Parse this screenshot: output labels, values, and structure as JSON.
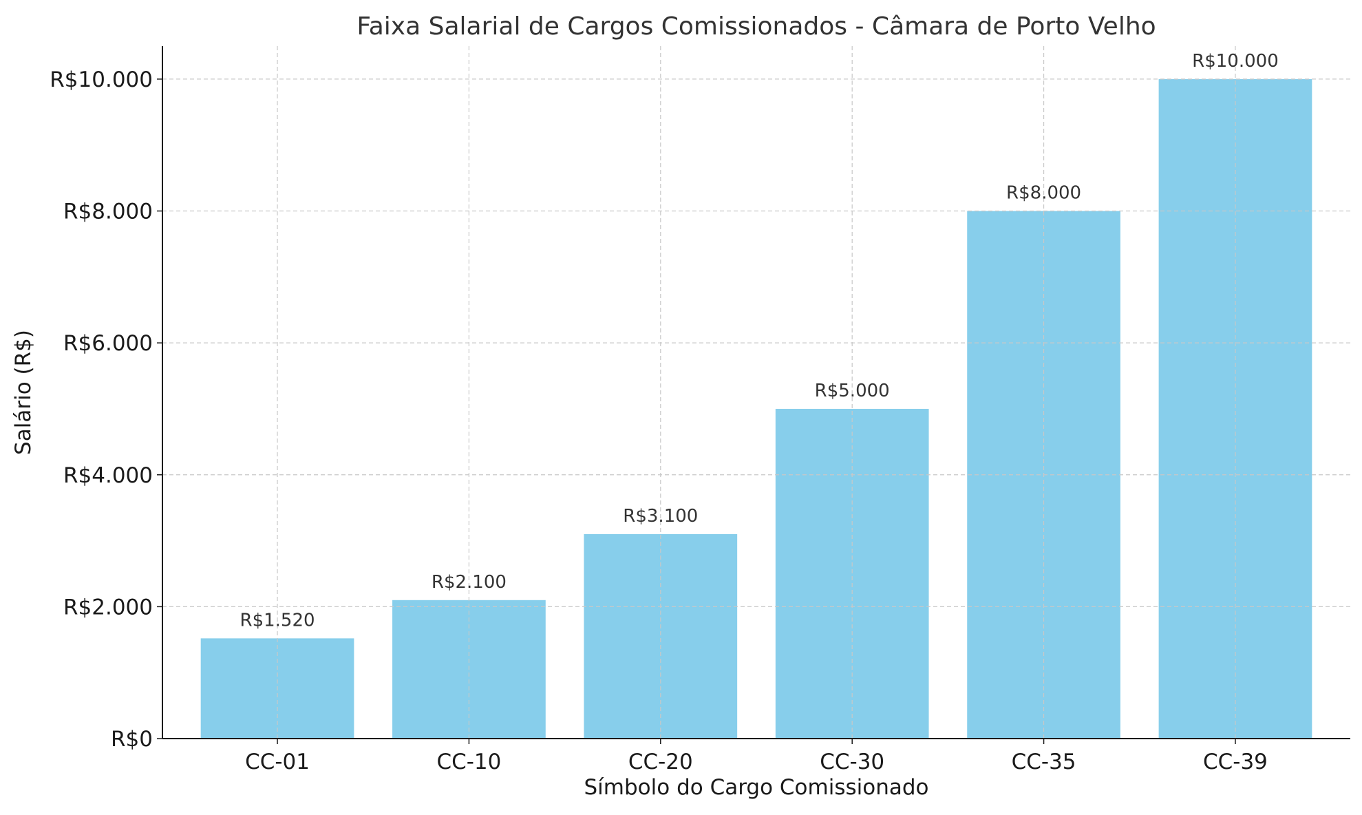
{
  "chart_data": {
    "type": "bar",
    "title": "Faixa Salarial de Cargos Comissionados - Câmara de Porto Velho",
    "xlabel": "Símbolo do Cargo Comissionado",
    "ylabel": "Salário (R$)",
    "categories": [
      "CC-01",
      "CC-10",
      "CC-20",
      "CC-30",
      "CC-35",
      "CC-39"
    ],
    "values": [
      1520,
      2100,
      3100,
      5000,
      8000,
      10000
    ],
    "data_labels": [
      "R$1.520",
      "R$2.100",
      "R$3.100",
      "R$5.000",
      "R$8.000",
      "R$10.000"
    ],
    "ylim": [
      0,
      10500
    ],
    "yticks": [
      0,
      2000,
      4000,
      6000,
      8000,
      10000
    ],
    "ytick_labels": [
      "R$0",
      "R$2.000",
      "R$4.000",
      "R$6.000",
      "R$8.000",
      "R$10.000"
    ],
    "grid": true,
    "bar_color": "#87CEEB",
    "grid_color": "#c8c8c8",
    "text_color": "#333333"
  }
}
